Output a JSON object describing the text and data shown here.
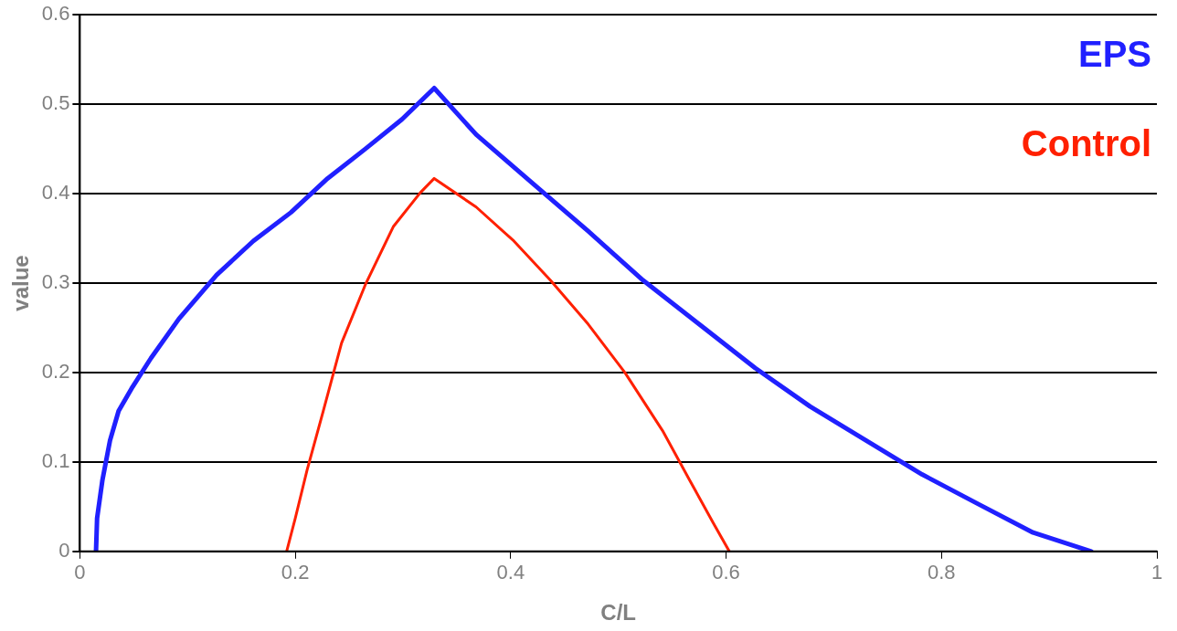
{
  "chart_data": {
    "type": "line",
    "xlabel": "C/L",
    "ylabel": "value",
    "xlim": [
      0,
      1
    ],
    "xticks": [
      0,
      0.2,
      0.4,
      0.6,
      0.8,
      1
    ],
    "ylim": [
      0,
      0.6
    ],
    "yticks": [
      0,
      0.1,
      0.2,
      0.3,
      0.4,
      0.5,
      0.6
    ],
    "grid": "y",
    "legend": "top right",
    "marker": "none",
    "line_style": "solid",
    "series": [
      {
        "name": "EPS",
        "color": "#2020ff",
        "x": [
          0.015,
          0.016,
          0.021,
          0.028,
          0.036,
          0.049,
          0.066,
          0.092,
          0.127,
          0.161,
          0.196,
          0.23,
          0.265,
          0.299,
          0.329,
          0.368,
          0.42,
          0.472,
          0.523,
          0.575,
          0.627,
          0.678,
          0.73,
          0.782,
          0.834,
          0.885,
          0.939
        ],
        "values": [
          0,
          0.037,
          0.08,
          0.124,
          0.157,
          0.184,
          0.216,
          0.26,
          0.309,
          0.347,
          0.379,
          0.417,
          0.45,
          0.483,
          0.518,
          0.466,
          0.412,
          0.358,
          0.303,
          0.254,
          0.205,
          0.162,
          0.124,
          0.086,
          0.053,
          0.021,
          0
        ]
      },
      {
        "name": "Control",
        "color": "#ff2000",
        "x": [
          0.192,
          0.2,
          0.211,
          0.226,
          0.243,
          0.265,
          0.291,
          0.316,
          0.329,
          0.368,
          0.403,
          0.437,
          0.472,
          0.506,
          0.541,
          0.566,
          0.588,
          0.603
        ],
        "values": [
          0,
          0.037,
          0.091,
          0.157,
          0.233,
          0.298,
          0.363,
          0.401,
          0.417,
          0.385,
          0.347,
          0.303,
          0.254,
          0.2,
          0.135,
          0.08,
          0.032,
          0
        ]
      }
    ]
  }
}
